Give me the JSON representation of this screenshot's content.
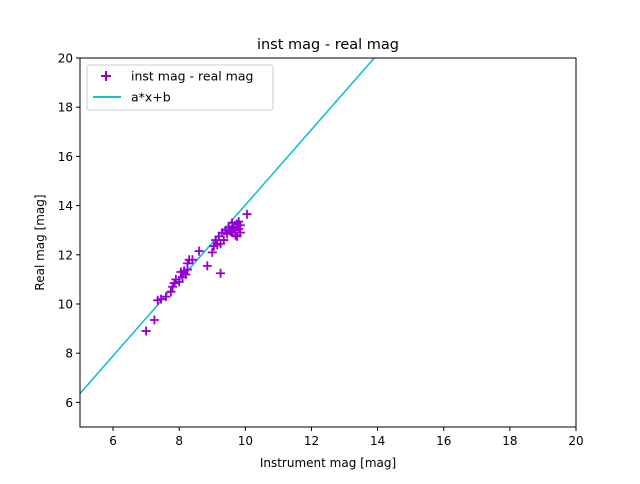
{
  "chart_data": {
    "type": "scatter",
    "title": "inst mag - real mag",
    "xlabel": "Instrument mag [mag]",
    "ylabel": "Real mag [mag]",
    "xlim": [
      5,
      20
    ],
    "ylim": [
      5,
      20
    ],
    "xticks": [
      6,
      8,
      10,
      12,
      14,
      16,
      18,
      20
    ],
    "yticks": [
      6,
      8,
      10,
      12,
      14,
      16,
      18,
      20
    ],
    "grid": false,
    "legend_position": "top-left",
    "series": [
      {
        "name": "inst mag - real mag",
        "kind": "scatter",
        "marker": "plus",
        "color": "#9400d3",
        "points": [
          [
            7.0,
            8.9
          ],
          [
            7.25,
            9.35
          ],
          [
            7.35,
            10.15
          ],
          [
            7.45,
            10.2
          ],
          [
            7.6,
            10.3
          ],
          [
            7.75,
            10.5
          ],
          [
            7.8,
            10.7
          ],
          [
            7.85,
            10.85
          ],
          [
            7.9,
            11.0
          ],
          [
            8.0,
            10.9
          ],
          [
            8.05,
            11.3
          ],
          [
            8.1,
            11.1
          ],
          [
            8.15,
            11.35
          ],
          [
            8.2,
            11.2
          ],
          [
            8.25,
            11.4
          ],
          [
            8.25,
            11.65
          ],
          [
            8.3,
            11.8
          ],
          [
            8.4,
            11.8
          ],
          [
            8.6,
            12.15
          ],
          [
            8.85,
            11.55
          ],
          [
            9.0,
            12.1
          ],
          [
            9.05,
            12.35
          ],
          [
            9.1,
            12.6
          ],
          [
            9.15,
            12.4
          ],
          [
            9.2,
            12.75
          ],
          [
            9.25,
            12.45
          ],
          [
            9.25,
            11.25
          ],
          [
            9.3,
            12.9
          ],
          [
            9.35,
            12.6
          ],
          [
            9.4,
            13.0
          ],
          [
            9.45,
            12.85
          ],
          [
            9.5,
            13.1
          ],
          [
            9.55,
            12.95
          ],
          [
            9.6,
            13.3
          ],
          [
            9.6,
            12.9
          ],
          [
            9.65,
            13.15
          ],
          [
            9.7,
            13.0
          ],
          [
            9.7,
            12.8
          ],
          [
            9.75,
            13.25
          ],
          [
            9.75,
            12.75
          ],
          [
            9.8,
            13.35
          ],
          [
            9.8,
            13.05
          ],
          [
            9.85,
            12.9
          ],
          [
            9.85,
            13.2
          ],
          [
            10.05,
            13.65
          ]
        ]
      },
      {
        "name": "a*x+b",
        "kind": "line",
        "color": "#17becf",
        "points": [
          [
            5,
            6.36
          ],
          [
            13.9,
            20
          ]
        ]
      }
    ]
  }
}
